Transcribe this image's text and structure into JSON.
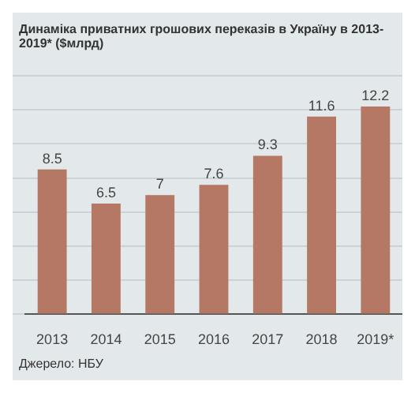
{
  "chart_data": {
    "type": "bar",
    "title": "Динаміка приватних грошових переказів в Україну в 2013-2019* ($млрд)",
    "categories": [
      "2013",
      "2014",
      "2015",
      "2016",
      "2017",
      "2018",
      "2019*"
    ],
    "values": [
      8.5,
      6.5,
      7,
      7.6,
      9.3,
      11.6,
      12.2
    ],
    "color": "#b57865",
    "data_labels": true,
    "grid": "y",
    "ylim": [
      0,
      14
    ],
    "tick_labels": "x",
    "annotations": [
      "Джерело: НБУ"
    ]
  }
}
